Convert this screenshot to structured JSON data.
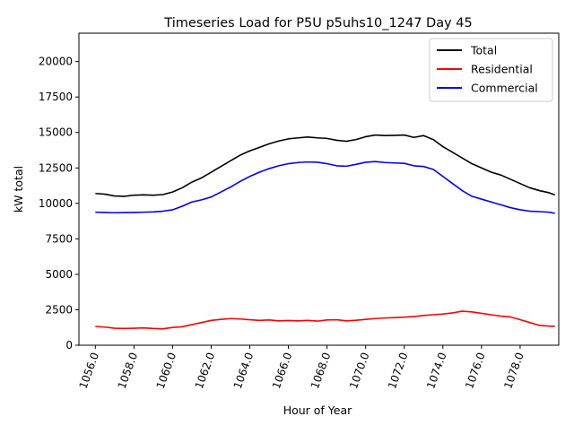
{
  "chart_data": {
    "type": "line",
    "title": "Timeseries Load for P5U p5uhs10_1247  Day 45",
    "xlabel": "Hour of Year",
    "ylabel": "kW total",
    "xlim": [
      1055.15,
      1080.0
    ],
    "ylim": [
      0,
      22000
    ],
    "xticks": [
      1056,
      1058,
      1060,
      1062,
      1064,
      1066,
      1068,
      1070,
      1072,
      1074,
      1076,
      1078
    ],
    "xtick_labels": [
      "1056.0",
      "1058.0",
      "1060.0",
      "1062.0",
      "1064.0",
      "1066.0",
      "1068.0",
      "1070.0",
      "1072.0",
      "1074.0",
      "1076.0",
      "1078.0"
    ],
    "yticks": [
      0,
      2500,
      5000,
      7500,
      10000,
      12500,
      15000,
      17500,
      20000
    ],
    "ytick_labels": [
      "0",
      "2500",
      "5000",
      "7500",
      "10000",
      "12500",
      "15000",
      "17500",
      "20000"
    ],
    "legend_position": "top-right",
    "series": [
      {
        "name": "Total",
        "color": "#000000",
        "points": [
          [
            1056.0,
            10700
          ],
          [
            1056.5,
            10650
          ],
          [
            1057.0,
            10520
          ],
          [
            1057.5,
            10500
          ],
          [
            1058.0,
            10580
          ],
          [
            1058.5,
            10600
          ],
          [
            1059.0,
            10580
          ],
          [
            1059.5,
            10620
          ],
          [
            1060.0,
            10800
          ],
          [
            1060.5,
            11100
          ],
          [
            1061.0,
            11500
          ],
          [
            1061.5,
            11800
          ],
          [
            1062.0,
            12200
          ],
          [
            1062.5,
            12600
          ],
          [
            1063.0,
            13000
          ],
          [
            1063.5,
            13400
          ],
          [
            1064.0,
            13700
          ],
          [
            1064.5,
            13950
          ],
          [
            1065.0,
            14200
          ],
          [
            1065.5,
            14400
          ],
          [
            1066.0,
            14550
          ],
          [
            1066.5,
            14620
          ],
          [
            1067.0,
            14680
          ],
          [
            1067.5,
            14620
          ],
          [
            1068.0,
            14580
          ],
          [
            1068.5,
            14450
          ],
          [
            1069.0,
            14380
          ],
          [
            1069.5,
            14500
          ],
          [
            1070.0,
            14700
          ],
          [
            1070.5,
            14820
          ],
          [
            1071.0,
            14780
          ],
          [
            1071.5,
            14800
          ],
          [
            1072.0,
            14820
          ],
          [
            1072.5,
            14650
          ],
          [
            1073.0,
            14780
          ],
          [
            1073.5,
            14500
          ],
          [
            1074.0,
            14000
          ],
          [
            1074.5,
            13600
          ],
          [
            1075.0,
            13200
          ],
          [
            1075.5,
            12800
          ],
          [
            1076.0,
            12500
          ],
          [
            1076.5,
            12200
          ],
          [
            1077.0,
            12000
          ],
          [
            1077.5,
            11700
          ],
          [
            1078.0,
            11400
          ],
          [
            1078.5,
            11100
          ],
          [
            1079.0,
            10900
          ],
          [
            1079.5,
            10750
          ],
          [
            1079.8,
            10600
          ]
        ]
      },
      {
        "name": "Residential",
        "color": "#ff0000",
        "points": [
          [
            1056.0,
            1320
          ],
          [
            1056.5,
            1280
          ],
          [
            1057.0,
            1200
          ],
          [
            1057.5,
            1180
          ],
          [
            1058.0,
            1200
          ],
          [
            1058.5,
            1220
          ],
          [
            1059.0,
            1180
          ],
          [
            1059.5,
            1160
          ],
          [
            1060.0,
            1250
          ],
          [
            1060.5,
            1300
          ],
          [
            1061.0,
            1450
          ],
          [
            1061.5,
            1600
          ],
          [
            1062.0,
            1750
          ],
          [
            1062.5,
            1820
          ],
          [
            1063.0,
            1880
          ],
          [
            1063.5,
            1850
          ],
          [
            1064.0,
            1800
          ],
          [
            1064.5,
            1750
          ],
          [
            1065.0,
            1780
          ],
          [
            1065.5,
            1720
          ],
          [
            1066.0,
            1740
          ],
          [
            1066.5,
            1720
          ],
          [
            1067.0,
            1750
          ],
          [
            1067.5,
            1700
          ],
          [
            1068.0,
            1780
          ],
          [
            1068.5,
            1800
          ],
          [
            1069.0,
            1720
          ],
          [
            1069.5,
            1760
          ],
          [
            1070.0,
            1820
          ],
          [
            1070.5,
            1880
          ],
          [
            1071.0,
            1920
          ],
          [
            1071.5,
            1950
          ],
          [
            1072.0,
            1980
          ],
          [
            1072.5,
            2020
          ],
          [
            1073.0,
            2100
          ],
          [
            1073.5,
            2150
          ],
          [
            1074.0,
            2200
          ],
          [
            1074.5,
            2280
          ],
          [
            1075.0,
            2400
          ],
          [
            1075.5,
            2350
          ],
          [
            1076.0,
            2250
          ],
          [
            1076.5,
            2150
          ],
          [
            1077.0,
            2050
          ],
          [
            1077.5,
            2000
          ],
          [
            1078.0,
            1800
          ],
          [
            1078.5,
            1600
          ],
          [
            1079.0,
            1400
          ],
          [
            1079.5,
            1350
          ],
          [
            1079.8,
            1330
          ]
        ]
      },
      {
        "name": "Commercial",
        "color": "#0000ff",
        "points": [
          [
            1056.0,
            9380
          ],
          [
            1056.5,
            9360
          ],
          [
            1057.0,
            9340
          ],
          [
            1057.5,
            9350
          ],
          [
            1058.0,
            9360
          ],
          [
            1058.5,
            9380
          ],
          [
            1059.0,
            9400
          ],
          [
            1059.5,
            9450
          ],
          [
            1060.0,
            9550
          ],
          [
            1060.5,
            9800
          ],
          [
            1061.0,
            10100
          ],
          [
            1061.5,
            10250
          ],
          [
            1062.0,
            10450
          ],
          [
            1062.5,
            10800
          ],
          [
            1063.0,
            11150
          ],
          [
            1063.5,
            11550
          ],
          [
            1064.0,
            11900
          ],
          [
            1064.5,
            12200
          ],
          [
            1065.0,
            12450
          ],
          [
            1065.5,
            12650
          ],
          [
            1066.0,
            12800
          ],
          [
            1066.5,
            12880
          ],
          [
            1067.0,
            12920
          ],
          [
            1067.5,
            12900
          ],
          [
            1068.0,
            12800
          ],
          [
            1068.5,
            12650
          ],
          [
            1069.0,
            12620
          ],
          [
            1069.5,
            12750
          ],
          [
            1070.0,
            12900
          ],
          [
            1070.5,
            12950
          ],
          [
            1071.0,
            12880
          ],
          [
            1071.5,
            12850
          ],
          [
            1072.0,
            12820
          ],
          [
            1072.5,
            12650
          ],
          [
            1073.0,
            12600
          ],
          [
            1073.5,
            12400
          ],
          [
            1074.0,
            11900
          ],
          [
            1074.5,
            11400
          ],
          [
            1075.0,
            10900
          ],
          [
            1075.5,
            10500
          ],
          [
            1076.0,
            10300
          ],
          [
            1076.5,
            10100
          ],
          [
            1077.0,
            9900
          ],
          [
            1077.5,
            9700
          ],
          [
            1078.0,
            9550
          ],
          [
            1078.5,
            9450
          ],
          [
            1079.0,
            9420
          ],
          [
            1079.5,
            9380
          ],
          [
            1079.8,
            9300
          ]
        ]
      }
    ]
  }
}
